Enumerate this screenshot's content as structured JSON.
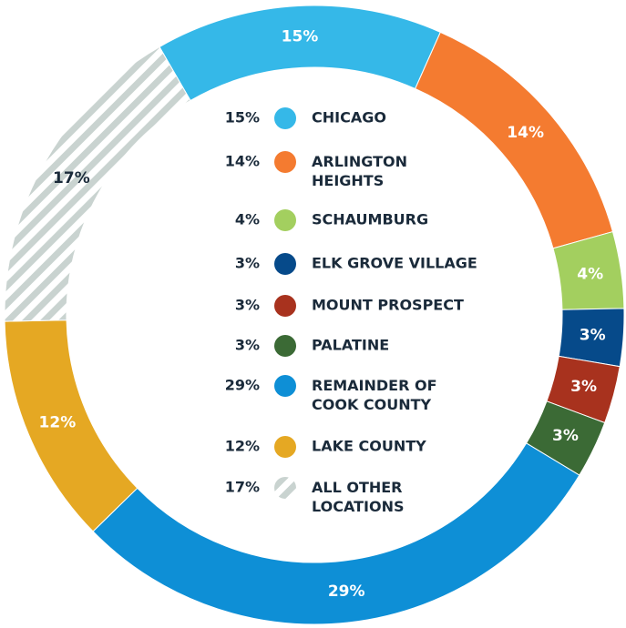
{
  "chart_data": {
    "type": "donut",
    "categories": [
      "CHICAGO",
      "ARLINGTON\nHEIGHTS",
      "SCHAUMBURG",
      "ELK GROVE VILLAGE",
      "MOUNT PROSPECT",
      "PALATINE",
      "REMAINDER OF\nCOOK COUNTY",
      "LAKE COUNTY",
      "ALL OTHER\nLOCATIONS"
    ],
    "values": [
      15,
      14,
      4,
      3,
      3,
      3,
      29,
      12,
      17
    ],
    "value_labels": [
      "15%",
      "14%",
      "4%",
      "3%",
      "3%",
      "3%",
      "29%",
      "12%",
      "17%"
    ],
    "colors": [
      "#35b8e8",
      "#f47b30",
      "#a3cf5f",
      "#064a8a",
      "#a8321e",
      "#3b6a35",
      "#0e8fd6",
      "#e5a823",
      "#c9d3d0"
    ],
    "hatch_index": 8
  }
}
